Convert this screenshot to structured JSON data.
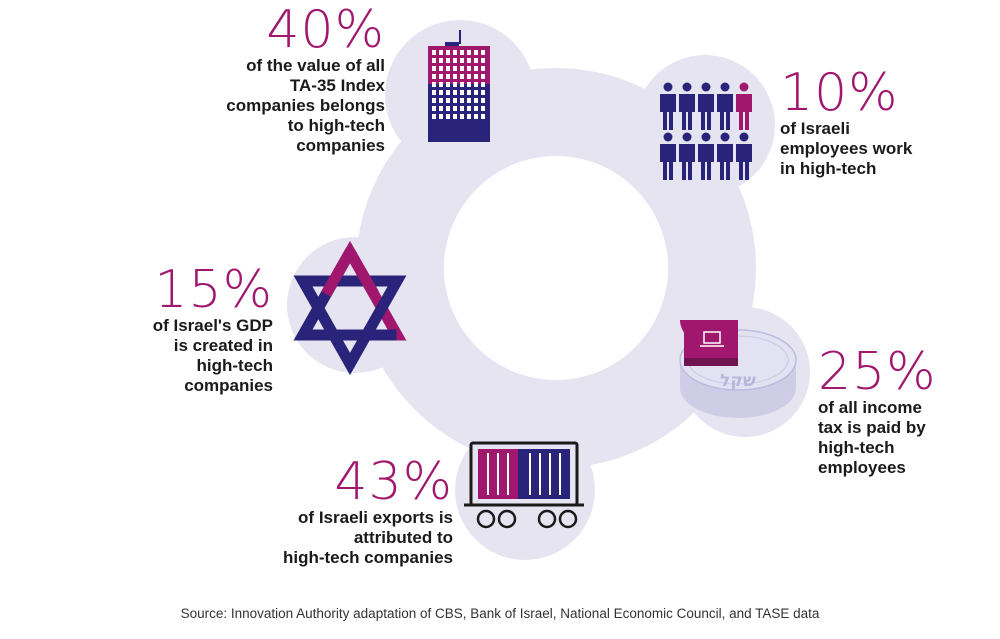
{
  "colors": {
    "magenta": "#a0176e",
    "navy": "#2a237a",
    "ring": "#e6e4f1",
    "text": "#1a1a1a"
  },
  "stats": [
    {
      "percent": "40%",
      "text": "of the value of all\nTA-35 Index\ncompanies belongs\nto high-tech\ncompanies",
      "icon": "building-icon"
    },
    {
      "percent": "10%",
      "text": "of Israeli\nemployees work\nin high-tech",
      "icon": "people-icon"
    },
    {
      "percent": "15%",
      "text": "of Israel's GDP\nis created in\nhigh-tech\ncompanies",
      "icon": "star-of-david-icon"
    },
    {
      "percent": "25%",
      "text": "of all income\ntax is paid by\nhigh-tech\nemployees",
      "icon": "coin-pie-icon"
    },
    {
      "percent": "43%",
      "text": "of Israeli exports is\nattributed to\nhigh-tech companies",
      "icon": "freight-wagon-icon"
    }
  ],
  "coin_text": "שקל",
  "source": "Source: Innovation Authority adaptation of CBS, Bank of Israel, National Economic Council, and TASE data"
}
